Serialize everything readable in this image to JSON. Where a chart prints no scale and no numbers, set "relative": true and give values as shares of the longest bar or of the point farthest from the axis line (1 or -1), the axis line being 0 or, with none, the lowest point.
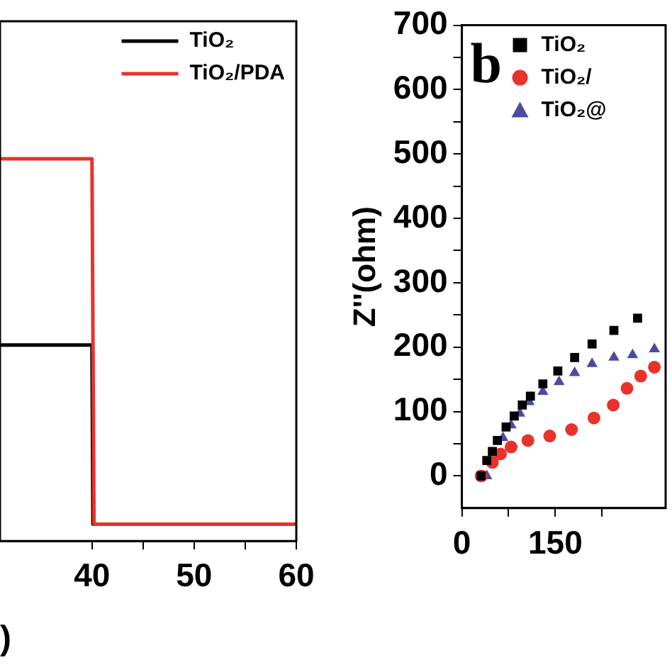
{
  "chart_data": [
    {
      "type": "line",
      "xlabel": ")",
      "relative": true,
      "xlim": [
        31,
        60
      ],
      "xticks": [
        40,
        {
          "value": 45,
          "label": null
        },
        50,
        {
          "value": 55,
          "label": null
        },
        60
      ],
      "legend": "top right",
      "grid": false,
      "marker": "none",
      "line_style": "solid",
      "series": [
        {
          "name": "TiO₂",
          "color": "#000000",
          "x": [
            31,
            40,
            40.1,
            60
          ],
          "values": [
            0.513,
            0.513,
            0.044,
            0.044
          ]
        },
        {
          "name": "TiO₂/PDA",
          "color": "#e8322a",
          "x": [
            31,
            40,
            40.2,
            60
          ],
          "values": [
            1,
            1,
            0.044,
            0.044
          ]
        }
      ]
    },
    {
      "type": "scatter",
      "ylabel": "Z''(ohm)",
      "annotations": [
        "b"
      ],
      "xlim": [
        0,
        327
      ],
      "xticks": [
        0,
        {
          "value": 75,
          "label": null
        },
        150,
        {
          "value": 225,
          "label": null
        }
      ],
      "ylim": [
        -50,
        700
      ],
      "yticks": [
        0,
        {
          "value": 50,
          "label": null
        },
        100,
        {
          "value": 150,
          "label": null
        },
        200,
        {
          "value": 250,
          "label": null
        },
        300,
        {
          "value": 350,
          "label": null
        },
        400,
        {
          "value": 450,
          "label": null
        },
        500,
        {
          "value": 550,
          "label": null
        },
        600,
        {
          "value": 650,
          "label": null
        },
        700
      ],
      "legend": "top left",
      "grid": false,
      "series": [
        {
          "name": "TiO₂",
          "color": "#000000",
          "marker": "square",
          "x": [
            31,
            40,
            49,
            57,
            71,
            84,
            97,
            110,
            130,
            154,
            181,
            209,
            244,
            282
          ],
          "values": [
            0,
            24,
            38,
            55,
            76,
            93,
            110,
            124,
            143,
            163,
            184,
            205,
            226,
            245
          ]
        },
        {
          "name": "TiO₂/",
          "color": "#e8322a",
          "marker": "circle",
          "x": [
            31,
            49,
            62,
            79,
            106,
            141,
            176,
            212,
            243,
            265,
            287,
            309
          ],
          "values": [
            0,
            21,
            34,
            45,
            55,
            62,
            72,
            90,
            110,
            136,
            155,
            169
          ]
        },
        {
          "name": "TiO₂@",
          "color": "#4b4ba0",
          "marker": "triangle",
          "x": [
            40,
            49,
            57,
            66,
            79,
            93,
            108,
            130,
            156,
            181,
            209,
            244,
            274,
            309
          ],
          "values": [
            0,
            null,
            null,
            59,
            79,
            97,
            115,
            131,
            146,
            160,
            174,
            184,
            188,
            197
          ]
        }
      ]
    }
  ]
}
